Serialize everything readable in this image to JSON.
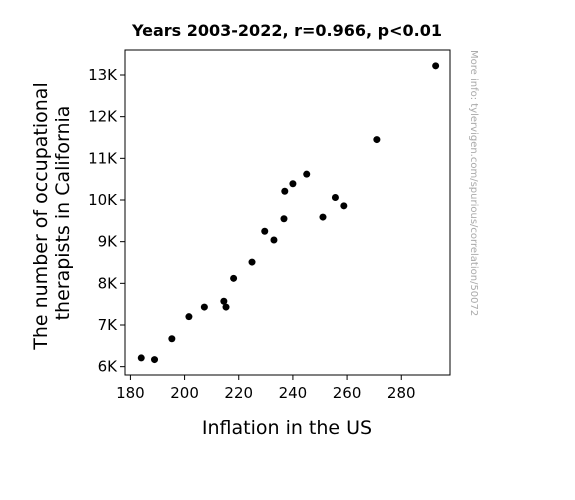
{
  "chart_data": {
    "type": "scatter",
    "title": "Years 2003-2022, r=0.966, p<0.01",
    "xlabel": "Inflation in the US",
    "ylabel_lines": [
      "The number of occupational",
      "therapists in California"
    ],
    "watermark": "More info: tylervigen.com/spurious/correlation/50072",
    "xlim": [
      178,
      298
    ],
    "ylim": [
      5800,
      13600
    ],
    "xticks": [
      180,
      200,
      220,
      240,
      260,
      280
    ],
    "xtick_labels": [
      "180",
      "200",
      "220",
      "240",
      "260",
      "280"
    ],
    "yticks": [
      6000,
      7000,
      8000,
      9000,
      10000,
      11000,
      12000,
      13000
    ],
    "ytick_labels": [
      "6K",
      "7K",
      "8K",
      "9K",
      "10K",
      "11K",
      "12K",
      "13K"
    ],
    "marker_color": "#000000",
    "points": [
      {
        "x": 184.0,
        "y": 6210
      },
      {
        "x": 188.9,
        "y": 6170
      },
      {
        "x": 195.3,
        "y": 6670
      },
      {
        "x": 201.6,
        "y": 7200
      },
      {
        "x": 207.3,
        "y": 7430
      },
      {
        "x": 214.5,
        "y": 7570
      },
      {
        "x": 215.3,
        "y": 7430
      },
      {
        "x": 218.1,
        "y": 8120
      },
      {
        "x": 224.9,
        "y": 8510
      },
      {
        "x": 229.6,
        "y": 9250
      },
      {
        "x": 233.0,
        "y": 9040
      },
      {
        "x": 236.7,
        "y": 9550
      },
      {
        "x": 237.0,
        "y": 10210
      },
      {
        "x": 240.0,
        "y": 10390
      },
      {
        "x": 245.1,
        "y": 10620
      },
      {
        "x": 251.1,
        "y": 9590
      },
      {
        "x": 255.7,
        "y": 10060
      },
      {
        "x": 258.8,
        "y": 9860
      },
      {
        "x": 271.0,
        "y": 11450
      },
      {
        "x": 292.7,
        "y": 13220
      }
    ]
  }
}
